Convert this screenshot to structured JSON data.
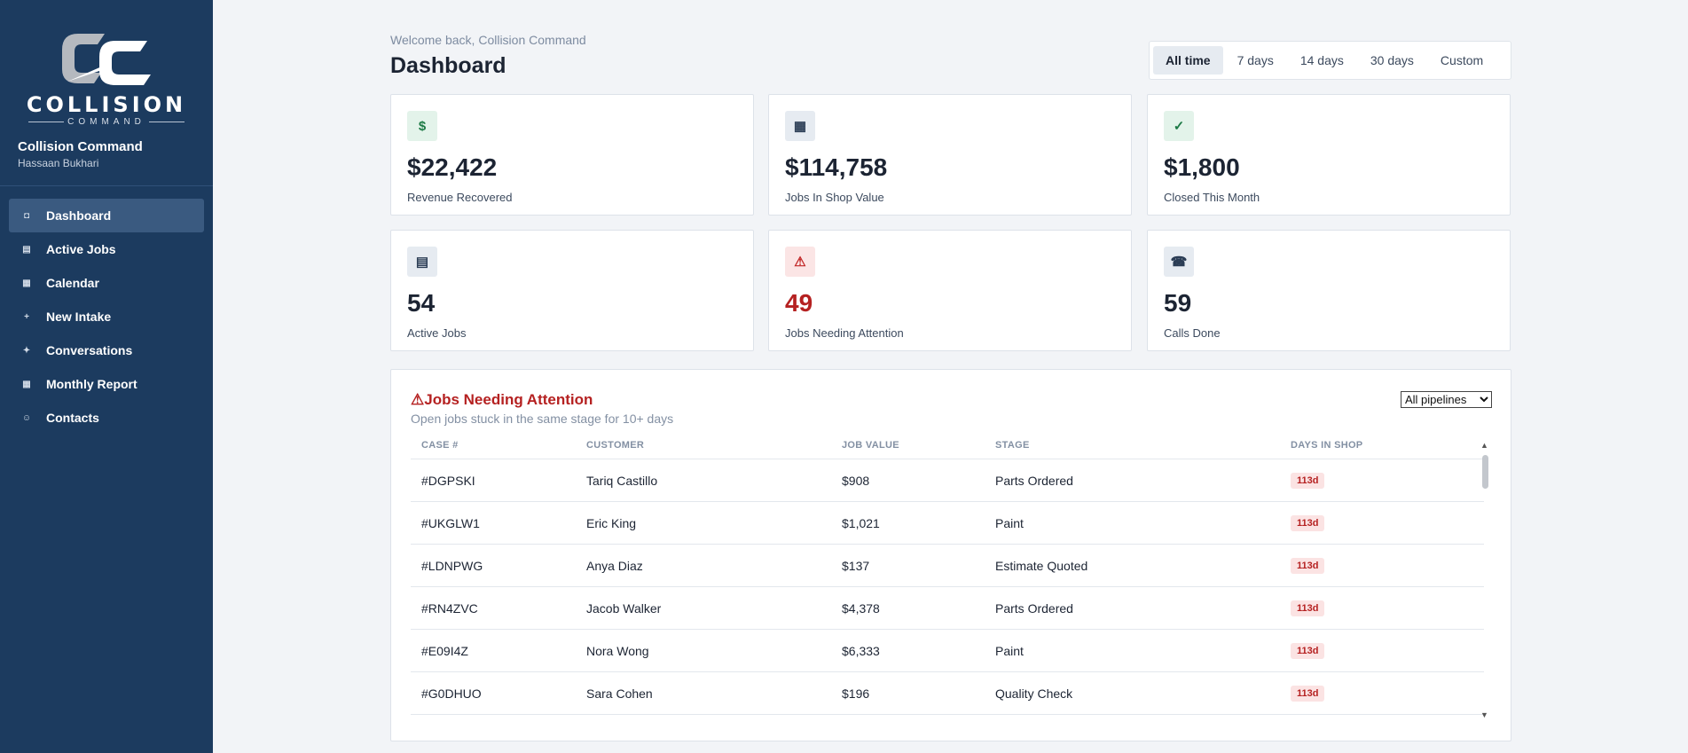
{
  "sidebar": {
    "logo": {
      "word": "COLLISION",
      "sub": "COMMAND"
    },
    "brand_name": "Collision Command",
    "user_name": "Hassaan Bukhari",
    "nav": [
      {
        "label": "Dashboard",
        "icon": "square-icon",
        "glyph": "◘",
        "active": true
      },
      {
        "label": "Active Jobs",
        "icon": "list-icon",
        "glyph": "▤",
        "active": false
      },
      {
        "label": "Calendar",
        "icon": "calendar-icon",
        "glyph": "▦",
        "active": false
      },
      {
        "label": "New Intake",
        "icon": "plus-icon",
        "glyph": "+",
        "active": false
      },
      {
        "label": "Conversations",
        "icon": "sparkle-icon",
        "glyph": "✦",
        "active": false
      },
      {
        "label": "Monthly Report",
        "icon": "report-icon",
        "glyph": "▦",
        "active": false
      },
      {
        "label": "Contacts",
        "icon": "contact-icon",
        "glyph": "☺",
        "active": false
      }
    ]
  },
  "header": {
    "welcome": "Welcome back, Collision Command",
    "title": "Dashboard",
    "ranges": [
      "All time",
      "7 days",
      "14 days",
      "30 days",
      "Custom"
    ],
    "active_range": "All time"
  },
  "cards": [
    {
      "value": "$22,422",
      "label": "Revenue Recovered",
      "icon": "dollar-icon",
      "glyph": "$",
      "tone": "green",
      "value_tone": ""
    },
    {
      "value": "$114,758",
      "label": "Jobs In Shop Value",
      "icon": "grid-icon",
      "glyph": "▦",
      "tone": "gray",
      "value_tone": ""
    },
    {
      "value": "$1,800",
      "label": "Closed This Month",
      "icon": "check-icon",
      "glyph": "✓",
      "tone": "green",
      "value_tone": ""
    },
    {
      "value": "54",
      "label": "Active Jobs",
      "icon": "list-icon",
      "glyph": "▤",
      "tone": "gray",
      "value_tone": ""
    },
    {
      "value": "49",
      "label": "Jobs Needing Attention",
      "icon": "warning-icon",
      "glyph": "⚠",
      "tone": "red",
      "value_tone": "red"
    },
    {
      "value": "59",
      "label": "Calls Done",
      "icon": "phone-icon",
      "glyph": "☎",
      "tone": "gray",
      "value_tone": ""
    }
  ],
  "attention": {
    "title": "Jobs Needing Attention",
    "subtitle": "Open jobs stuck in the same stage for 10+ days",
    "filter_value": "All pipelines",
    "columns": [
      "CASE #",
      "CUSTOMER",
      "JOB VALUE",
      "STAGE",
      "DAYS IN SHOP"
    ],
    "rows": [
      {
        "case": "#DGPSKI",
        "customer": "Tariq Castillo",
        "value": "$908",
        "stage": "Parts Ordered",
        "days": "113d"
      },
      {
        "case": "#UKGLW1",
        "customer": "Eric King",
        "value": "$1,021",
        "stage": "Paint",
        "days": "113d"
      },
      {
        "case": "#LDNPWG",
        "customer": "Anya Diaz",
        "value": "$137",
        "stage": "Estimate Quoted",
        "days": "113d"
      },
      {
        "case": "#RN4ZVC",
        "customer": "Jacob Walker",
        "value": "$4,378",
        "stage": "Parts Ordered",
        "days": "113d"
      },
      {
        "case": "#E09I4Z",
        "customer": "Nora Wong",
        "value": "$6,333",
        "stage": "Paint",
        "days": "113d"
      },
      {
        "case": "#G0DHUO",
        "customer": "Sara Cohen",
        "value": "$196",
        "stage": "Quality Check",
        "days": "113d"
      }
    ]
  }
}
